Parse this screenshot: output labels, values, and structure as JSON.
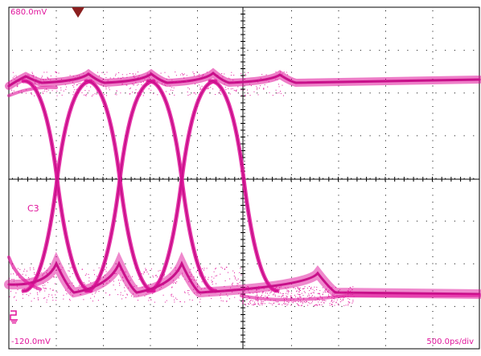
{
  "scope": {
    "top_voltage": "680.0mV",
    "bottom_voltage": "-120.0mV",
    "timebase": "500.0ps/div",
    "channel": "C3"
  },
  "colors": {
    "trace": "#e0149b",
    "trace_dense": "#c8108a",
    "graticule": "#000000",
    "trigger_marker": "#8b1f1f"
  },
  "icons": {
    "trigger": "trigger-position-triangle-icon",
    "ground": "ground-reference-icon"
  }
}
